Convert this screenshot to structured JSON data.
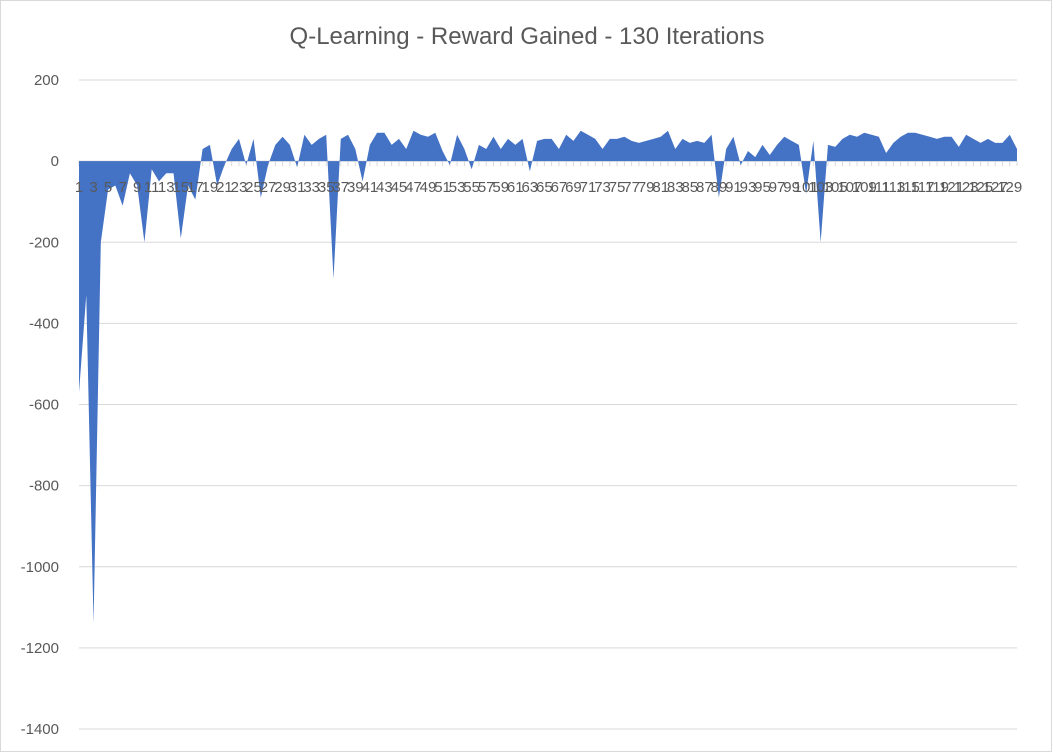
{
  "chart_data": {
    "type": "area",
    "title": "Q-Learning - Reward Gained - 130 Iterations",
    "xlabel": "",
    "ylabel": "",
    "ylim": [
      -1400,
      200
    ],
    "yticks": [
      200,
      0,
      -200,
      -400,
      -600,
      -800,
      -1000,
      -1200,
      -1400
    ],
    "grid": true,
    "legend": "none",
    "color": "#4472C4",
    "x": [
      1,
      2,
      3,
      4,
      5,
      6,
      7,
      8,
      9,
      10,
      11,
      12,
      13,
      14,
      15,
      16,
      17,
      18,
      19,
      20,
      21,
      22,
      23,
      24,
      25,
      26,
      27,
      28,
      29,
      30,
      31,
      32,
      33,
      34,
      35,
      36,
      37,
      38,
      39,
      40,
      41,
      42,
      43,
      44,
      45,
      46,
      47,
      48,
      49,
      50,
      51,
      52,
      53,
      54,
      55,
      56,
      57,
      58,
      59,
      60,
      61,
      62,
      63,
      64,
      65,
      66,
      67,
      68,
      69,
      70,
      71,
      72,
      73,
      74,
      75,
      76,
      77,
      78,
      79,
      80,
      81,
      82,
      83,
      84,
      85,
      86,
      87,
      88,
      89,
      90,
      91,
      92,
      93,
      94,
      95,
      96,
      97,
      98,
      99,
      100,
      101,
      102,
      103,
      104,
      105,
      106,
      107,
      108,
      109,
      110,
      111,
      112,
      113,
      114,
      115,
      116,
      117,
      118,
      119,
      120,
      121,
      122,
      123,
      124,
      125,
      126,
      127,
      128,
      129,
      130
    ],
    "values": [
      -570,
      -330,
      -1140,
      -200,
      -70,
      -60,
      -110,
      -30,
      -60,
      -200,
      -20,
      -50,
      -30,
      -30,
      -190,
      -60,
      -95,
      30,
      40,
      -60,
      -10,
      30,
      55,
      -10,
      55,
      -90,
      -10,
      40,
      60,
      40,
      -15,
      65,
      40,
      55,
      65,
      -290,
      55,
      65,
      30,
      -50,
      40,
      70,
      70,
      40,
      55,
      30,
      75,
      65,
      60,
      70,
      25,
      -10,
      65,
      30,
      -20,
      40,
      30,
      60,
      30,
      55,
      40,
      55,
      -25,
      50,
      55,
      55,
      30,
      65,
      50,
      75,
      65,
      55,
      30,
      55,
      55,
      60,
      50,
      45,
      50,
      55,
      60,
      75,
      30,
      55,
      45,
      50,
      45,
      65,
      -90,
      30,
      60,
      -10,
      25,
      10,
      40,
      15,
      40,
      60,
      50,
      40,
      -80,
      50,
      -200,
      40,
      35,
      55,
      65,
      60,
      70,
      65,
      60,
      20,
      45,
      60,
      70,
      70,
      65,
      60,
      55,
      60,
      60,
      35,
      65,
      55,
      45,
      55,
      45,
      45,
      65,
      30
    ]
  }
}
